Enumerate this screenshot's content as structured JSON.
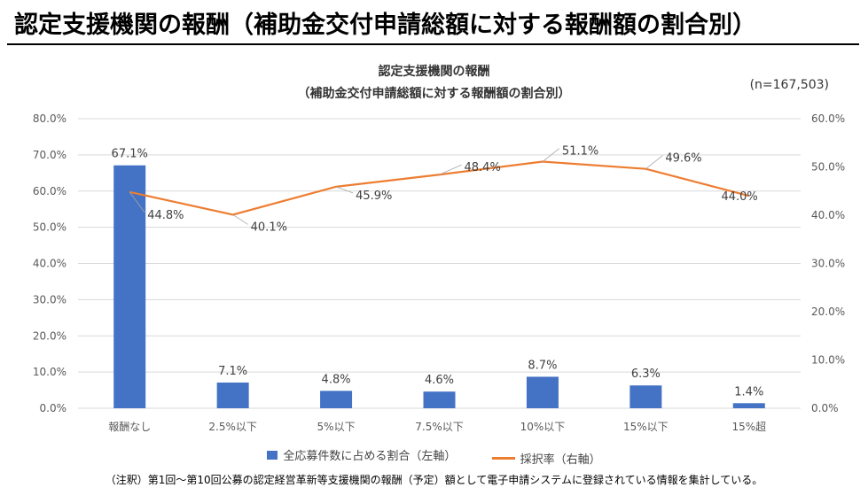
{
  "page": {
    "title": "認定支援機関の報酬（補助金交付申請総額に対する報酬額の割合別）",
    "footnote": "（注釈）第1回〜第10回公募の認定経営革新等支援機関の報酬（予定）額として電子申請システムに登録されている情報を集計している。"
  },
  "chart_data": {
    "type": "bar+line",
    "title_line1": "認定支援機関の報酬",
    "title_line2": "（補助金交付申請総額に対する報酬額の割合別）",
    "sample_size": "(n=167,503)",
    "categories": [
      "報酬なし",
      "2.5%以下",
      "5%以下",
      "7.5%以下",
      "10%以下",
      "15%以下",
      "15%超"
    ],
    "series": [
      {
        "name": "全応募件数に占める割合（左軸）",
        "type": "bar",
        "axis": "left",
        "color": "#4472C4",
        "values": [
          67.1,
          7.1,
          4.8,
          4.6,
          8.7,
          6.3,
          1.4
        ],
        "labels": [
          "67.1%",
          "7.1%",
          "4.8%",
          "4.6%",
          "8.7%",
          "6.3%",
          "1.4%"
        ]
      },
      {
        "name": "採択率（右軸）",
        "type": "line",
        "axis": "right",
        "color": "#ED7D31",
        "values": [
          44.8,
          40.1,
          45.9,
          48.4,
          51.1,
          49.6,
          44.0
        ],
        "labels": [
          "44.8%",
          "40.1%",
          "45.9%",
          "48.4%",
          "51.1%",
          "49.6%",
          "44.0%"
        ]
      }
    ],
    "left_axis": {
      "min": 0,
      "max": 80,
      "step": 10,
      "tick_labels": [
        "0.0%",
        "10.0%",
        "20.0%",
        "30.0%",
        "40.0%",
        "50.0%",
        "60.0%",
        "70.0%",
        "80.0%"
      ]
    },
    "right_axis": {
      "min": 0,
      "max": 60,
      "step": 10,
      "tick_labels": [
        "0.0%",
        "10.0%",
        "20.0%",
        "30.0%",
        "40.0%",
        "50.0%",
        "60.0%"
      ]
    },
    "grid": true,
    "legend_position": "bottom"
  }
}
